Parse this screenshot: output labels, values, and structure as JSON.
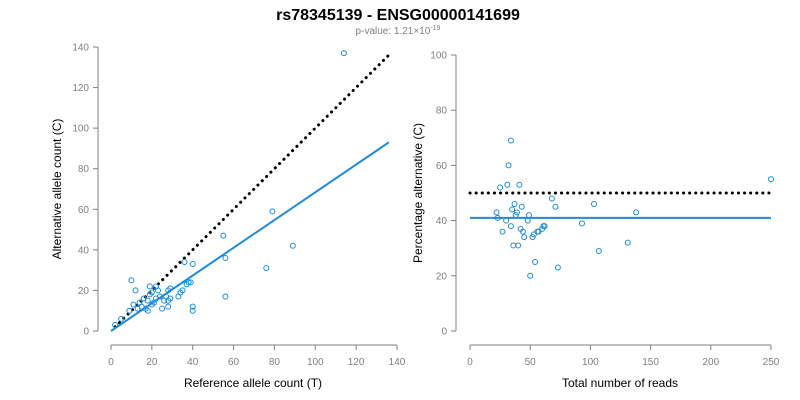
{
  "title": "rs78345139 - ENSG00000141699",
  "subtitle": {
    "prefix": "p-value: 1.21×10",
    "exponent": "-19"
  },
  "colors": {
    "points": "#1f8ad8",
    "fit_line": "#1f8ad8",
    "reference_line": "#000000",
    "axis": "#7f7f7f"
  },
  "chart_data": [
    {
      "type": "scatter",
      "xlabel": "Reference allele count (T)",
      "ylabel": "Alternative allele count (C)",
      "xlim": [
        0,
        140
      ],
      "ylim": [
        0,
        140
      ],
      "xticks": [
        0,
        20,
        40,
        60,
        80,
        100,
        120,
        140
      ],
      "yticks": [
        0,
        20,
        40,
        60,
        80,
        100,
        120,
        140
      ],
      "grid": false,
      "points": [
        [
          2,
          3
        ],
        [
          5,
          6
        ],
        [
          9,
          10
        ],
        [
          10,
          25
        ],
        [
          11,
          13
        ],
        [
          12,
          20
        ],
        [
          13,
          11
        ],
        [
          14,
          14
        ],
        [
          15,
          12
        ],
        [
          16,
          16
        ],
        [
          17,
          11
        ],
        [
          18,
          15
        ],
        [
          18,
          10
        ],
        [
          19,
          18
        ],
        [
          19,
          22
        ],
        [
          20,
          13
        ],
        [
          20,
          19
        ],
        [
          21,
          14
        ],
        [
          22,
          16
        ],
        [
          22,
          22
        ],
        [
          23,
          20
        ],
        [
          24,
          17
        ],
        [
          25,
          11
        ],
        [
          26,
          15
        ],
        [
          27,
          17
        ],
        [
          28,
          12
        ],
        [
          28,
          15
        ],
        [
          28,
          20
        ],
        [
          29,
          21
        ],
        [
          29,
          16
        ],
        [
          33,
          17
        ],
        [
          34,
          19
        ],
        [
          35,
          20
        ],
        [
          36,
          34
        ],
        [
          37,
          23
        ],
        [
          38,
          24
        ],
        [
          39,
          24
        ],
        [
          40,
          33
        ],
        [
          40,
          12
        ],
        [
          40,
          10
        ],
        [
          55,
          47
        ],
        [
          56,
          17
        ],
        [
          56,
          36
        ],
        [
          76,
          31
        ],
        [
          79,
          59
        ],
        [
          89,
          42
        ],
        [
          114,
          137
        ]
      ],
      "lines": [
        {
          "name": "",
          "style": "dotted",
          "x": [
            2,
            136
          ],
          "y": [
            2,
            136
          ]
        },
        {
          "name": "",
          "style": "solid",
          "x": [
            0,
            136
          ],
          "y": [
            0,
            93
          ]
        }
      ]
    },
    {
      "type": "scatter",
      "xlabel": "Total number of reads",
      "ylabel": "Percentage alternative (C)",
      "xlim": [
        0,
        250
      ],
      "ylim": [
        0,
        100
      ],
      "xticks": [
        0,
        50,
        100,
        150,
        200,
        250
      ],
      "yticks": [
        0,
        20,
        40,
        60,
        80,
        100
      ],
      "grid": false,
      "points": [
        [
          22,
          43
        ],
        [
          23,
          41
        ],
        [
          25,
          52
        ],
        [
          27,
          36
        ],
        [
          30,
          40
        ],
        [
          31,
          53
        ],
        [
          32,
          60
        ],
        [
          34,
          69
        ],
        [
          34,
          38
        ],
        [
          35,
          44
        ],
        [
          36,
          31
        ],
        [
          37,
          46
        ],
        [
          38,
          42
        ],
        [
          39,
          43
        ],
        [
          40,
          31
        ],
        [
          41,
          53
        ],
        [
          42,
          37
        ],
        [
          43,
          45
        ],
        [
          44,
          36
        ],
        [
          45,
          34
        ],
        [
          48,
          40
        ],
        [
          49,
          42
        ],
        [
          50,
          20
        ],
        [
          52,
          34
        ],
        [
          53,
          35
        ],
        [
          54,
          25
        ],
        [
          56,
          36
        ],
        [
          57,
          36
        ],
        [
          60,
          37
        ],
        [
          61,
          38
        ],
        [
          62,
          38
        ],
        [
          68,
          48
        ],
        [
          71,
          45
        ],
        [
          73,
          23
        ],
        [
          93,
          39
        ],
        [
          103,
          46
        ],
        [
          107,
          29
        ],
        [
          131,
          32
        ],
        [
          138,
          43
        ],
        [
          250,
          55
        ]
      ],
      "lines": [
        {
          "name": "",
          "style": "dotted",
          "x": [
            0,
            250
          ],
          "y": [
            50,
            50
          ]
        },
        {
          "name": "",
          "style": "solid",
          "x": [
            0,
            250
          ],
          "y": [
            41,
            41
          ]
        }
      ]
    }
  ]
}
